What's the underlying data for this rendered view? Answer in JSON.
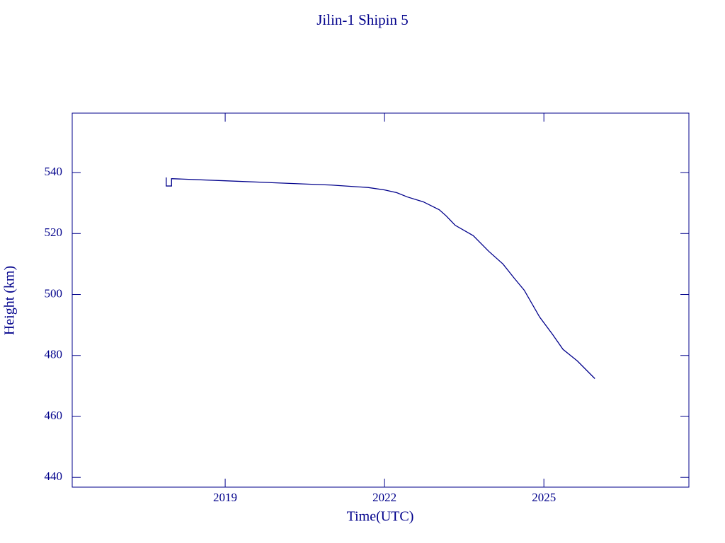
{
  "chart_data": {
    "type": "line",
    "title": "Jilin-1 Shipin 5",
    "x_label": "Time(UTC)",
    "y_label": "Height (km)",
    "x": [
      2017.89,
      2017.89,
      2017.99,
      2017.99,
      2019.0,
      2020.0,
      2021.0,
      2021.69,
      2022.0,
      2022.23,
      2022.43,
      2022.73,
      2023.03,
      2023.16,
      2023.33,
      2023.67,
      2023.96,
      2024.23,
      2024.43,
      2024.63,
      2024.92,
      2025.16,
      2025.36,
      2025.63,
      2025.96
    ],
    "values": [
      538.4,
      535.6,
      535.6,
      538.0,
      537.3,
      536.6,
      535.9,
      535.1,
      534.3,
      533.4,
      532.0,
      530.4,
      527.8,
      525.8,
      522.7,
      519.3,
      514.2,
      510.0,
      505.6,
      501.4,
      492.6,
      487.0,
      482.0,
      478.2,
      472.4
    ],
    "color": "#00008b",
    "xlim": [
      2016.12,
      2027.73
    ],
    "xticks": [
      2019,
      2022,
      2025
    ],
    "ylim": [
      436.8,
      559.5
    ],
    "yticks": [
      440,
      460,
      480,
      500,
      520,
      540
    ]
  }
}
